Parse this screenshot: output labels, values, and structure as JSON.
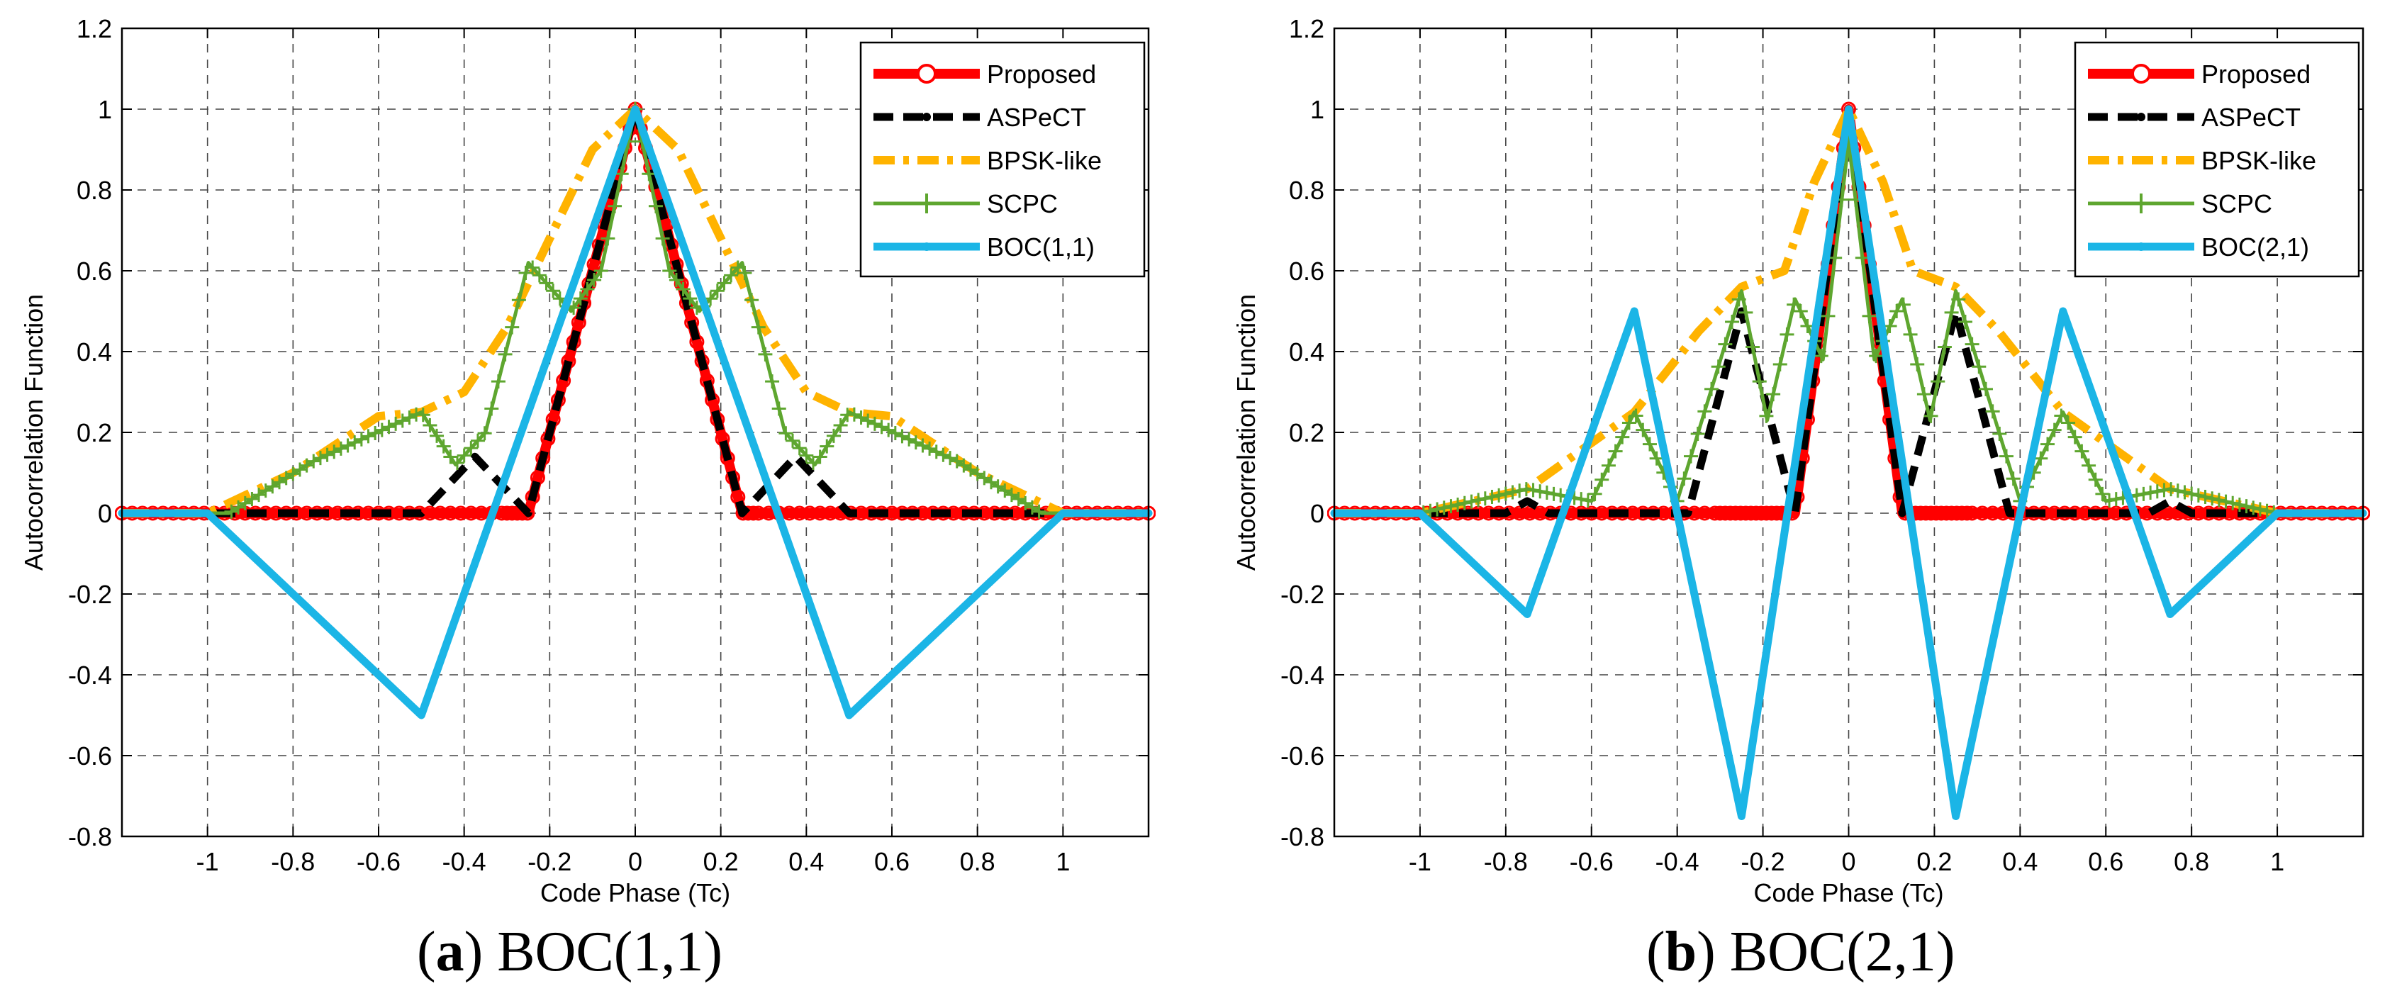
{
  "chart_data": [
    {
      "id": "a",
      "type": "line",
      "caption_letter": "a",
      "caption_rest": " BOC(1,1)",
      "xlabel": "Code Phase (Tc)",
      "ylabel": "Autocorrelation Function",
      "xlim": [
        -1.2,
        1.2
      ],
      "ylim": [
        -0.8,
        1.2
      ],
      "xticks": [
        -1,
        -0.8,
        -0.6,
        -0.4,
        -0.2,
        0,
        0.2,
        0.4,
        0.6,
        0.8,
        1
      ],
      "xtick_labels": [
        "-1",
        "-0.8",
        "-0.6",
        "-0.4",
        "-0.2",
        "0",
        "0.2",
        "0.4",
        "0.6",
        "0.8",
        "1"
      ],
      "yticks": [
        -0.8,
        -0.6,
        -0.4,
        -0.2,
        0,
        0.2,
        0.4,
        0.6,
        0.8,
        1,
        1.2
      ],
      "ytick_labels": [
        "-0.8",
        "-0.6",
        "-0.4",
        "-0.2",
        "0",
        "0.2",
        "0.4",
        "0.6",
        "0.8",
        "1",
        "1.2"
      ],
      "grid": true,
      "legend_position": "top-right",
      "series": [
        {
          "name": "Proposed",
          "key": "proposed",
          "color": "#ff0000",
          "x": [
            -1.2,
            -0.25,
            0,
            0.25,
            1.2
          ],
          "y": [
            0,
            0,
            1,
            0,
            0
          ]
        },
        {
          "name": "ASPeCT",
          "key": "aspect",
          "color": "#000000",
          "x": [
            -1.2,
            -0.5,
            -0.375,
            -0.25,
            0,
            0.25,
            0.375,
            0.5,
            1.2
          ],
          "y": [
            0,
            0,
            0.14,
            0,
            1,
            0,
            0.14,
            0,
            0
          ]
        },
        {
          "name": "BPSK-like",
          "key": "bpsk",
          "color": "#ffb300",
          "x": [
            -1.2,
            -1,
            -0.8,
            -0.6,
            -0.5,
            -0.4,
            -0.3,
            -0.2,
            -0.1,
            0,
            0.1,
            0.2,
            0.3,
            0.4,
            0.5,
            0.6,
            0.8,
            1,
            1.2
          ],
          "y": [
            0,
            0,
            0.1,
            0.24,
            0.25,
            0.3,
            0.46,
            0.68,
            0.9,
            1,
            0.9,
            0.68,
            0.46,
            0.3,
            0.25,
            0.24,
            0.1,
            0,
            0
          ]
        },
        {
          "name": "SCPC",
          "key": "scpc",
          "color": "#5ea62f",
          "x": [
            -1.2,
            -0.95,
            -0.75,
            -0.5,
            -0.42,
            -0.35,
            -0.25,
            -0.15,
            -0.08,
            0,
            0.08,
            0.15,
            0.25,
            0.35,
            0.42,
            0.5,
            0.75,
            0.95,
            1.2
          ],
          "y": [
            0,
            0,
            0.13,
            0.25,
            0.12,
            0.2,
            0.62,
            0.5,
            0.6,
            1,
            0.6,
            0.5,
            0.62,
            0.2,
            0.12,
            0.25,
            0.13,
            0,
            0
          ]
        },
        {
          "name": "BOC(1,1)",
          "key": "boc",
          "color": "#1bb5e6",
          "x": [
            -1.2,
            -1,
            -0.5,
            0,
            0.5,
            1,
            1.2
          ],
          "y": [
            0,
            0,
            -0.5,
            1,
            -0.5,
            0,
            0
          ]
        }
      ]
    },
    {
      "id": "b",
      "type": "line",
      "caption_letter": "b",
      "caption_rest": " BOC(2,1)",
      "xlabel": "Code Phase (Tc)",
      "ylabel": "Autocorrelation Function",
      "xlim": [
        -1.2,
        1.2
      ],
      "ylim": [
        -0.8,
        1.2
      ],
      "xticks": [
        -1,
        -0.8,
        -0.6,
        -0.4,
        -0.2,
        0,
        0.2,
        0.4,
        0.6,
        0.8,
        1
      ],
      "xtick_labels": [
        "-1",
        "-0.8",
        "-0.6",
        "-0.4",
        "-0.2",
        "0",
        "0.2",
        "0.4",
        "0.6",
        "0.8",
        "1"
      ],
      "yticks": [
        -0.8,
        -0.6,
        -0.4,
        -0.2,
        0,
        0.2,
        0.4,
        0.6,
        0.8,
        1,
        1.2
      ],
      "ytick_labels": [
        "-0.8",
        "-0.6",
        "-0.4",
        "-0.2",
        "0",
        "0.2",
        "0.4",
        "0.6",
        "0.8",
        "1",
        "1.2"
      ],
      "grid": true,
      "legend_position": "top-right",
      "series": [
        {
          "name": "Proposed",
          "key": "proposed",
          "color": "#ff0000",
          "x": [
            -1.2,
            -0.125,
            0,
            0.125,
            1.2
          ],
          "y": [
            0,
            0,
            1,
            0,
            0
          ]
        },
        {
          "name": "ASPeCT",
          "key": "aspect",
          "color": "#000000",
          "x": [
            -1.2,
            -0.8,
            -0.75,
            -0.7,
            -0.375,
            -0.25,
            -0.125,
            0,
            0.125,
            0.25,
            0.375,
            0.7,
            0.75,
            0.8,
            1.2
          ],
          "y": [
            0,
            0,
            0.03,
            0,
            0,
            0.5,
            0,
            1,
            0,
            0.5,
            0,
            0,
            0.03,
            0,
            0
          ]
        },
        {
          "name": "BPSK-like",
          "key": "bpsk",
          "color": "#ffb300",
          "x": [
            -1.2,
            -1,
            -0.75,
            -0.5,
            -0.35,
            -0.25,
            -0.15,
            -0.08,
            0,
            0.08,
            0.15,
            0.25,
            0.35,
            0.5,
            0.75,
            1,
            1.2
          ],
          "y": [
            0,
            0,
            0.06,
            0.25,
            0.45,
            0.56,
            0.6,
            0.82,
            1,
            0.82,
            0.6,
            0.56,
            0.45,
            0.25,
            0.06,
            0,
            0
          ]
        },
        {
          "name": "SCPC",
          "key": "scpc",
          "color": "#5ea62f",
          "x": [
            -1.2,
            -1,
            -0.75,
            -0.6,
            -0.5,
            -0.4,
            -0.25,
            -0.19,
            -0.125,
            -0.06,
            0,
            0.06,
            0.125,
            0.19,
            0.25,
            0.4,
            0.5,
            0.6,
            0.75,
            1,
            1.2
          ],
          "y": [
            0,
            0,
            0.06,
            0.03,
            0.25,
            0.03,
            0.55,
            0.23,
            0.53,
            0.38,
            0.92,
            0.38,
            0.53,
            0.23,
            0.55,
            0.03,
            0.25,
            0.03,
            0.06,
            0,
            0
          ]
        },
        {
          "name": "BOC(2,1)",
          "key": "boc",
          "color": "#1bb5e6",
          "x": [
            -1.2,
            -1,
            -0.75,
            -0.5,
            -0.25,
            0,
            0.25,
            0.5,
            0.75,
            1,
            1.2
          ],
          "y": [
            0,
            0,
            -0.25,
            0.5,
            -0.75,
            1,
            -0.75,
            0.5,
            -0.25,
            0,
            0
          ]
        }
      ]
    }
  ]
}
